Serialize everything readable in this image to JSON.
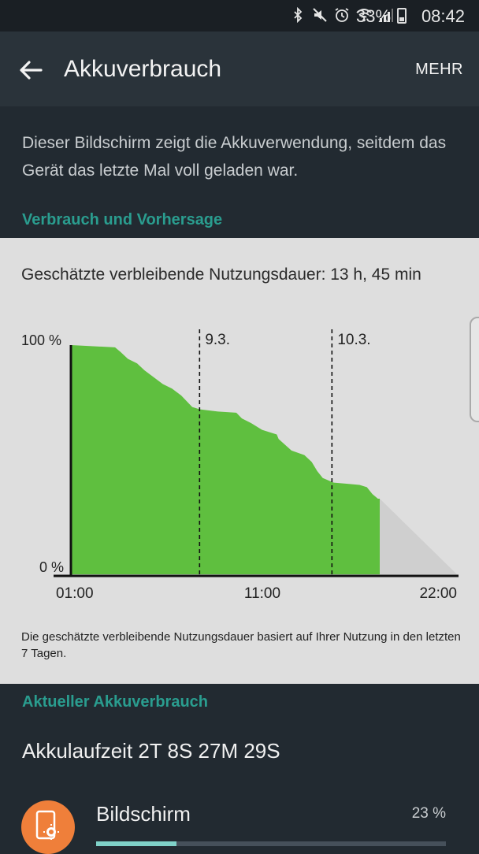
{
  "status_bar": {
    "battery_percent": "33%",
    "time": "08:42",
    "icons": [
      "bluetooth-icon",
      "mute-icon",
      "alarm-icon",
      "wifi-icon",
      "signal-icon",
      "battery-icon"
    ]
  },
  "app_bar": {
    "title": "Akkuverbrauch",
    "more_label": "MEHR"
  },
  "description": "Dieser Bildschirm zeigt die Akkuverwendung, seitdem das Gerät das letzte Mal voll geladen war.",
  "section_usage_forecast": "Verbrauch und Vorhersage",
  "estimate_text": "Geschätzte verbleibende Nutzungsdauer: 13 h, 45 min",
  "chart_data": {
    "type": "area",
    "ylabels": [
      "100 %",
      "0 %"
    ],
    "ylim": [
      0,
      100
    ],
    "xlabels": [
      "01:00",
      "11:00",
      "22:00"
    ],
    "xlim": [
      0,
      21
    ],
    "day_markers": [
      {
        "label": "9.3.",
        "x": 7
      },
      {
        "label": "10.3.",
        "x": 14.2
      }
    ],
    "actual": [
      [
        0,
        100
      ],
      [
        2.4,
        99
      ],
      [
        2.7,
        97
      ],
      [
        3.1,
        94
      ],
      [
        3.6,
        92
      ],
      [
        4.0,
        89
      ],
      [
        4.5,
        86
      ],
      [
        5.0,
        83
      ],
      [
        5.5,
        81
      ],
      [
        6.0,
        78
      ],
      [
        6.6,
        73
      ],
      [
        7.0,
        72
      ],
      [
        8.0,
        71
      ],
      [
        9.0,
        70.5
      ],
      [
        9.3,
        68
      ],
      [
        9.8,
        66
      ],
      [
        10.4,
        63
      ],
      [
        11.2,
        61
      ],
      [
        11.3,
        59
      ],
      [
        12.0,
        54
      ],
      [
        12.7,
        52
      ],
      [
        13.1,
        49
      ],
      [
        13.4,
        45
      ],
      [
        13.7,
        42
      ],
      [
        14.3,
        40
      ],
      [
        15.0,
        39.5
      ],
      [
        15.7,
        39
      ],
      [
        16.1,
        38
      ],
      [
        16.4,
        35
      ],
      [
        16.7,
        33
      ],
      [
        16.8,
        33
      ],
      [
        16.8,
        0
      ],
      [
        0,
        0
      ]
    ],
    "predicted": [
      [
        16.8,
        33
      ],
      [
        21,
        0
      ]
    ],
    "colors": {
      "actual": "#5fbf3f",
      "predicted": "#cfcfcf",
      "axis": "#111111"
    }
  },
  "chart_note": "Die geschätzte verbleibende Nutzungsdauer basiert auf Ihrer Nutzung in den letzten 7 Tagen.",
  "section_current": "Aktueller Akkuverbrauch",
  "uptime": "Akkulaufzeit 2T 8S 27M 29S",
  "usage_items": [
    {
      "name": "Bildschirm",
      "percent": "23 %",
      "fraction": 0.23,
      "icon": "screen-brightness-icon"
    }
  ],
  "colors": {
    "accent": "#2a9d8f",
    "background": "#222a31",
    "app_bar": "#2a333a",
    "card": "#dedede",
    "icon_bg": "#ef7f3a"
  }
}
